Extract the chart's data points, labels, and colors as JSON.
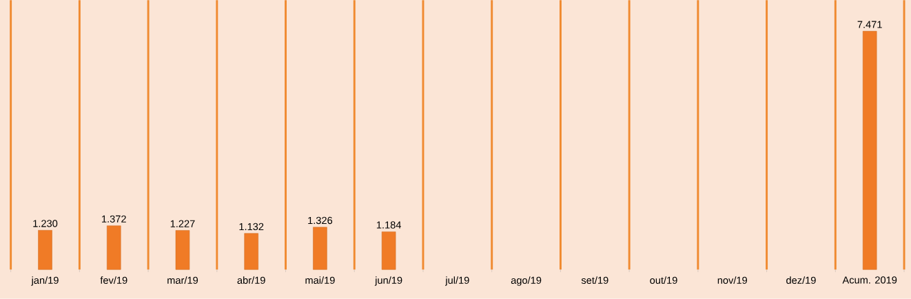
{
  "chart_data": {
    "type": "bar",
    "categories": [
      "jan/19",
      "fev/19",
      "mar/19",
      "abr/19",
      "mai/19",
      "jun/19",
      "jul/19",
      "ago/19",
      "set/19",
      "out/19",
      "nov/19",
      "dez/19",
      "Acum. 2019"
    ],
    "values": [
      1230,
      1372,
      1227,
      1132,
      1326,
      1184,
      null,
      null,
      null,
      null,
      null,
      null,
      7471
    ],
    "value_labels": [
      "1.230",
      "1.372",
      "1.227",
      "1.132",
      "1.326",
      "1.184",
      null,
      null,
      null,
      null,
      null,
      null,
      "7.471"
    ],
    "color": "#f07b26",
    "grid": "x"
  }
}
